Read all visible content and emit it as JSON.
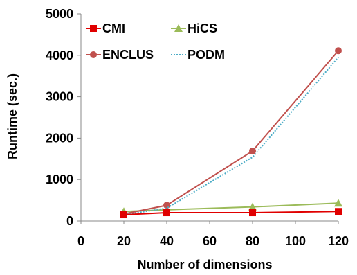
{
  "chart_data": {
    "type": "line",
    "xlabel": "Number of dimensions",
    "ylabel": "Runtime (sec.)",
    "xlim": [
      0,
      120
    ],
    "ylim": [
      0,
      5000
    ],
    "x_ticks": [
      0,
      20,
      40,
      60,
      80,
      100,
      120
    ],
    "y_ticks": [
      0,
      1000,
      2000,
      3000,
      4000,
      5000
    ],
    "grid": false,
    "legend_position": "top-left",
    "series": [
      {
        "name": "CMI",
        "marker": "square",
        "color": "#e00000",
        "dash": "solid",
        "x": [
          20,
          40,
          80,
          120
        ],
        "values": [
          150,
          200,
          200,
          230
        ]
      },
      {
        "name": "HiCS",
        "marker": "triangle",
        "color": "#9bbb59",
        "dash": "solid",
        "x": [
          20,
          40,
          80,
          120
        ],
        "values": [
          230,
          270,
          340,
          430
        ]
      },
      {
        "name": "ENCLUS",
        "marker": "circle",
        "color": "#c0504d",
        "dash": "solid",
        "x": [
          20,
          40,
          80,
          120
        ],
        "values": [
          170,
          380,
          1690,
          4110
        ]
      },
      {
        "name": "PODM",
        "marker": "none",
        "color": "#4bacc6",
        "dash": "dotted",
        "x": [
          20,
          40,
          80,
          120
        ],
        "values": [
          150,
          310,
          1540,
          3950
        ]
      }
    ]
  }
}
